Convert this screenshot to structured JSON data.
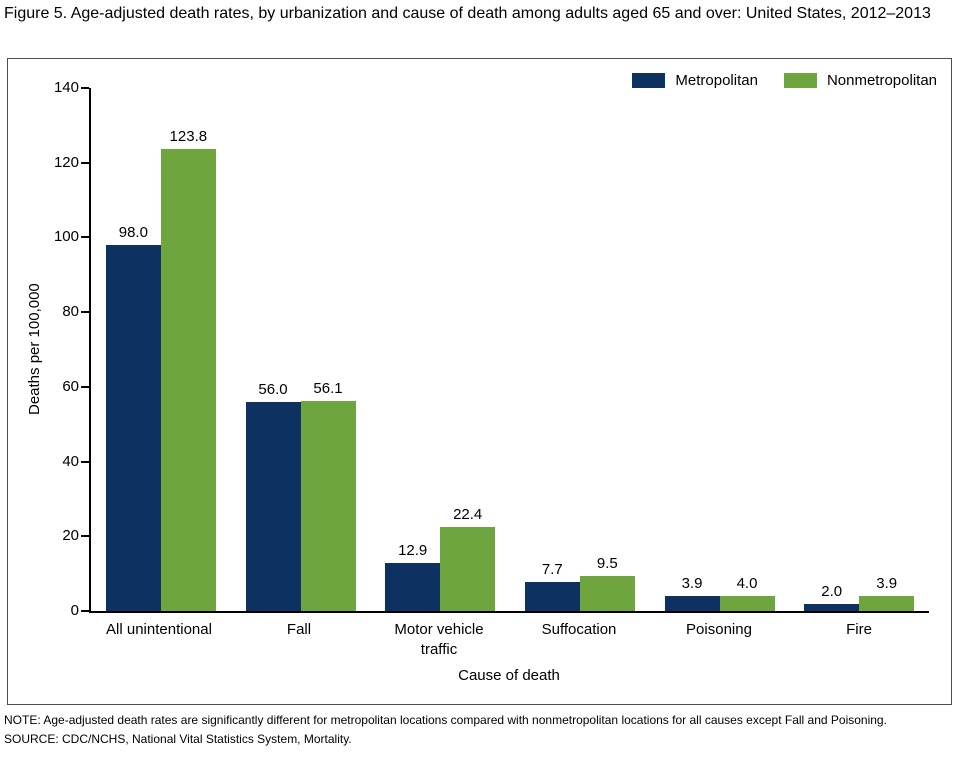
{
  "figure_title": "Figure 5. Age-adjusted death rates, by urbanization and cause of death among adults aged 65 and over: United States, 2012–2013",
  "colors": {
    "metropolitan": "#0d3161",
    "nonmetropolitan": "#6fa53f",
    "axis": "#000000",
    "box_border": "#4d4d4d"
  },
  "chart_data": {
    "type": "bar",
    "title": "",
    "categories": [
      "All unintentional",
      "Fall",
      "Motor vehicle traffic",
      "Suffocation",
      "Poisoning",
      "Fire"
    ],
    "series": [
      {
        "name": "Metropolitan",
        "color": "#0d3161",
        "values": [
          98.0,
          56.0,
          12.9,
          7.7,
          3.9,
          2.0
        ]
      },
      {
        "name": "Nonmetropolitan",
        "color": "#6fa53f",
        "values": [
          123.8,
          56.1,
          22.4,
          9.5,
          4.0,
          3.9
        ]
      }
    ],
    "xlabel": "Cause of death",
    "ylabel": "Deaths per 100,000",
    "ylim": [
      0,
      140
    ],
    "yticks": [
      0,
      20,
      40,
      60,
      80,
      100,
      120,
      140
    ],
    "grid": false,
    "legend_position": "top-right",
    "value_label_decimals": 1
  },
  "notes": {
    "note": "NOTE: Age-adjusted death rates are significantly different for metropolitan locations compared with nonmetropolitan locations for all causes except Fall and Poisoning.",
    "source": "SOURCE: CDC/NCHS, National Vital Statistics System, Mortality."
  }
}
